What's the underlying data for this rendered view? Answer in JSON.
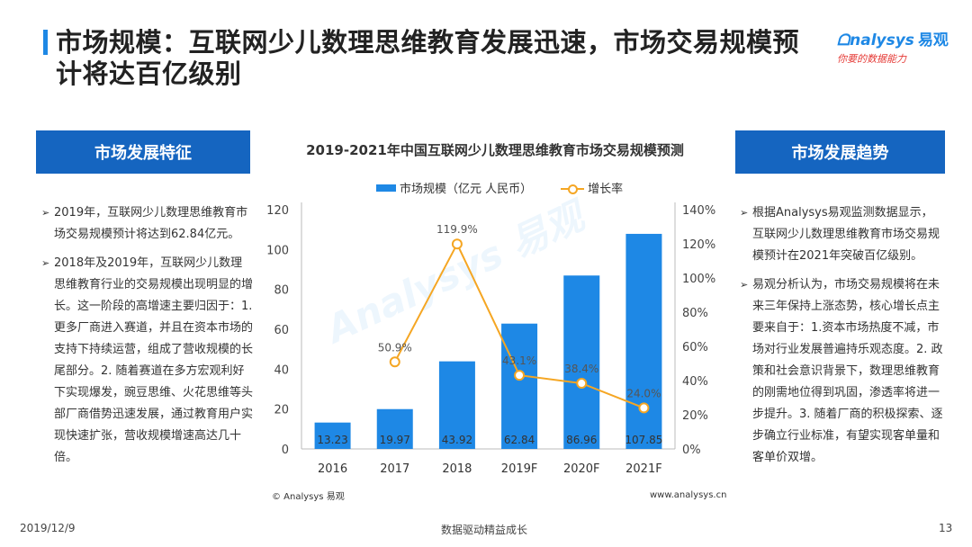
{
  "header": {
    "title": "市场规模：互联网少儿数理思维教育发展迅速，市场交易规模预计将达百亿级别",
    "logo_text": "nalysys",
    "logo_cn": "易观",
    "logo_slogan": "你要的数据能力"
  },
  "left_panel": {
    "heading": "市场发展特征",
    "bullets": [
      "2019年，互联网少儿数理思维教育市场交易规模预计将达到62.84亿元。",
      "2018年及2019年，互联网少儿数理思维教育行业的交易规模出现明显的增长。这一阶段的高增速主要归因于：1.更多厂商进入赛道，并且在资本市场的支持下持续运营，组成了营收规模的长尾部分。2. 随着赛道在多方宏观利好下实现爆发，豌豆思维、火花思维等头部厂商借势迅速发展，通过教育用户实现快速扩张，营收规模增速高达几十倍。"
    ]
  },
  "right_panel": {
    "heading": "市场发展趋势",
    "bullets": [
      "根据Analysys易观监测数据显示，互联网少儿数理思维教育市场交易规模预计在2021年突破百亿级别。",
      "易观分析认为，市场交易规模将在未来三年保持上涨态势，核心增长点主要来自于：1.资本市场热度不减，市场对行业发展普遍持乐观态度。2. 政策和社会意识背景下，数理思维教育的刚需地位得到巩固，渗透率将进一步提升。3. 随着厂商的积极探索、逐步确立行业标准，有望实现客单量和客单价双增。"
    ]
  },
  "chart_data": {
    "type": "bar",
    "title": "2019-2021年中国互联网少儿数理思维教育市场交易规模预测",
    "categories": [
      "2016",
      "2017",
      "2018",
      "2019F",
      "2020F",
      "2021F"
    ],
    "series": [
      {
        "name": "市场规模（亿元 人民币）",
        "type": "bar",
        "values": [
          13.23,
          19.97,
          43.92,
          62.84,
          86.96,
          107.85
        ],
        "labels": [
          "13.23",
          "19.97",
          "43.92",
          "62.84",
          "86.96",
          "107.85"
        ],
        "axis": "left"
      },
      {
        "name": "增长率",
        "type": "line",
        "values": [
          null,
          50.9,
          119.9,
          43.1,
          38.4,
          24.0
        ],
        "labels": [
          "",
          "50.9%",
          "119.9%",
          "43.1%",
          "38.4%",
          "24.0%"
        ],
        "axis": "right"
      }
    ],
    "y_left": {
      "min": 0,
      "max": 120,
      "ticks": [
        "0",
        "20",
        "40",
        "60",
        "80",
        "100",
        "120"
      ]
    },
    "y_right": {
      "min": 0,
      "max": 140,
      "ticks": [
        "0%",
        "20%",
        "40%",
        "60%",
        "80%",
        "100%",
        "120%",
        "140%"
      ]
    },
    "grid": false,
    "legend_position": "top",
    "colors": {
      "bar": "#1e88e5",
      "line": "#f5a623"
    }
  },
  "source": "© Analysys 易观",
  "site": "www.analysys.cn",
  "watermark": "Analysys 易观",
  "footer": {
    "date": "2019/12/9",
    "center": "数据驱动精益成长",
    "page": "13"
  }
}
